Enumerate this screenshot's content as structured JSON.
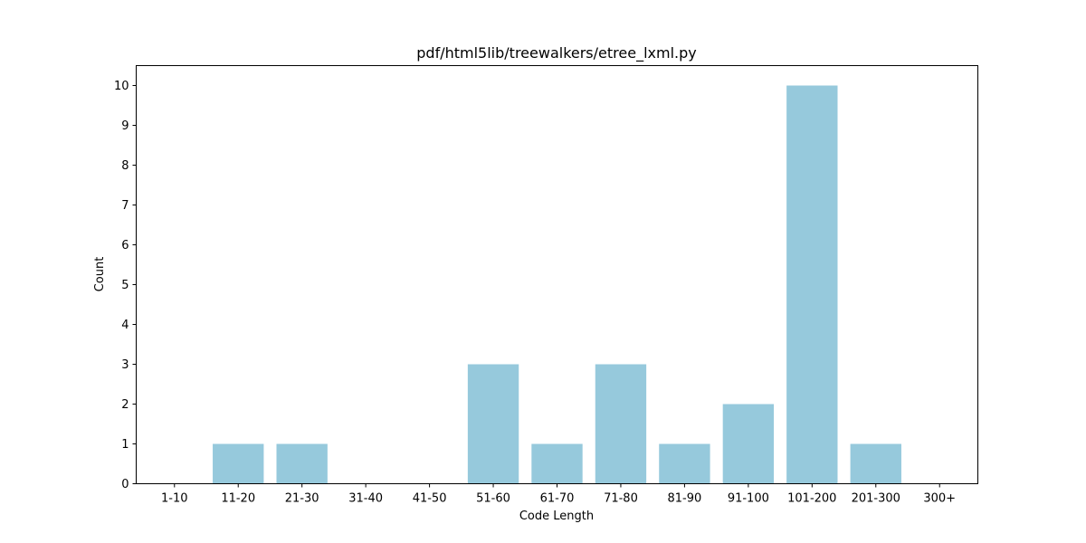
{
  "chart_data": {
    "type": "bar",
    "title": "pdf/html5lib/treewalkers/etree_lxml.py",
    "xlabel": "Code Length",
    "ylabel": "Count",
    "categories": [
      "1-10",
      "11-20",
      "21-30",
      "31-40",
      "41-50",
      "51-60",
      "61-70",
      "71-80",
      "81-90",
      "91-100",
      "101-200",
      "201-300",
      "300+"
    ],
    "values": [
      0,
      1,
      1,
      0,
      0,
      3,
      1,
      3,
      1,
      2,
      10,
      1,
      0
    ],
    "ylim": [
      0,
      10.5
    ],
    "yticks": [
      0,
      1,
      2,
      3,
      4,
      5,
      6,
      7,
      8,
      9,
      10
    ],
    "grid": false,
    "bar_color": "#96c9dc",
    "axis_color": "#000000"
  }
}
